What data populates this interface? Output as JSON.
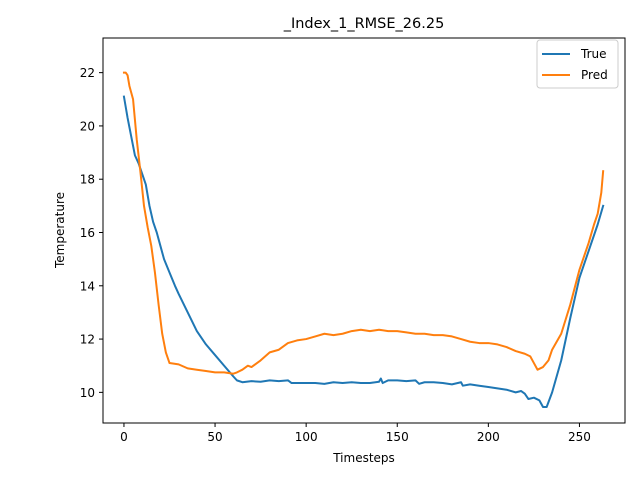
{
  "chart_data": {
    "type": "line",
    "title": "_Index_1_RMSE_26.25",
    "xlabel": "Timesteps",
    "ylabel": "Temperature",
    "xlim": [
      -11.5,
      275
    ],
    "ylim": [
      8.85,
      23.3
    ],
    "xticks": [
      0,
      50,
      100,
      150,
      200,
      250
    ],
    "yticks": [
      10,
      12,
      14,
      16,
      18,
      20,
      22
    ],
    "legend_position": "top-right",
    "grid": false,
    "series": [
      {
        "name": "True",
        "color": "#1f77b4",
        "x": [
          0,
          2,
          4,
          6,
          8,
          10,
          12,
          14,
          16,
          18,
          20,
          22,
          25,
          28,
          30,
          35,
          40,
          45,
          50,
          55,
          60,
          62,
          65,
          70,
          75,
          80,
          85,
          90,
          92,
          95,
          100,
          105,
          110,
          115,
          120,
          125,
          130,
          135,
          140,
          141,
          142,
          145,
          150,
          155,
          160,
          162,
          165,
          170,
          175,
          180,
          185,
          186,
          190,
          195,
          200,
          205,
          210,
          215,
          218,
          220,
          222,
          225,
          228,
          230,
          232,
          235,
          240,
          245,
          250,
          255,
          260,
          263
        ],
        "values": [
          21.1,
          20.3,
          19.6,
          18.9,
          18.6,
          18.2,
          17.8,
          17.0,
          16.4,
          16.0,
          15.5,
          15.0,
          14.5,
          14.0,
          13.7,
          13.0,
          12.3,
          11.8,
          11.4,
          11.0,
          10.6,
          10.45,
          10.38,
          10.42,
          10.4,
          10.45,
          10.42,
          10.45,
          10.35,
          10.35,
          10.35,
          10.35,
          10.32,
          10.38,
          10.35,
          10.38,
          10.35,
          10.35,
          10.4,
          10.52,
          10.35,
          10.45,
          10.45,
          10.42,
          10.45,
          10.32,
          10.38,
          10.38,
          10.35,
          10.3,
          10.38,
          10.25,
          10.3,
          10.25,
          10.2,
          10.15,
          10.1,
          10.0,
          10.05,
          9.95,
          9.75,
          9.8,
          9.7,
          9.45,
          9.45,
          10.0,
          11.2,
          12.8,
          14.3,
          15.3,
          16.3,
          17.0
        ]
      },
      {
        "name": "Pred",
        "color": "#ff7f0e",
        "x": [
          0,
          1,
          2,
          3,
          5,
          7,
          9,
          11,
          13,
          15,
          17,
          19,
          21,
          23,
          25,
          30,
          35,
          40,
          45,
          50,
          55,
          60,
          62,
          65,
          68,
          70,
          75,
          80,
          85,
          90,
          95,
          100,
          105,
          110,
          115,
          120,
          125,
          130,
          135,
          140,
          145,
          150,
          155,
          160,
          165,
          170,
          175,
          180,
          185,
          190,
          195,
          200,
          205,
          210,
          215,
          220,
          223,
          225,
          227,
          230,
          233,
          235,
          240,
          245,
          250,
          255,
          258,
          260,
          262,
          263
        ],
        "values": [
          22.0,
          22.0,
          21.9,
          21.5,
          21.0,
          19.5,
          18.3,
          17.0,
          16.2,
          15.5,
          14.5,
          13.3,
          12.2,
          11.5,
          11.1,
          11.05,
          10.9,
          10.85,
          10.8,
          10.75,
          10.75,
          10.7,
          10.75,
          10.85,
          11.0,
          10.95,
          11.2,
          11.5,
          11.6,
          11.85,
          11.95,
          12.0,
          12.1,
          12.2,
          12.15,
          12.2,
          12.3,
          12.35,
          12.3,
          12.35,
          12.3,
          12.3,
          12.25,
          12.2,
          12.2,
          12.15,
          12.15,
          12.1,
          12.0,
          11.9,
          11.85,
          11.85,
          11.8,
          11.7,
          11.55,
          11.45,
          11.35,
          11.1,
          10.85,
          10.95,
          11.2,
          11.6,
          12.2,
          13.3,
          14.6,
          15.6,
          16.3,
          16.7,
          17.5,
          18.3
        ]
      }
    ]
  }
}
